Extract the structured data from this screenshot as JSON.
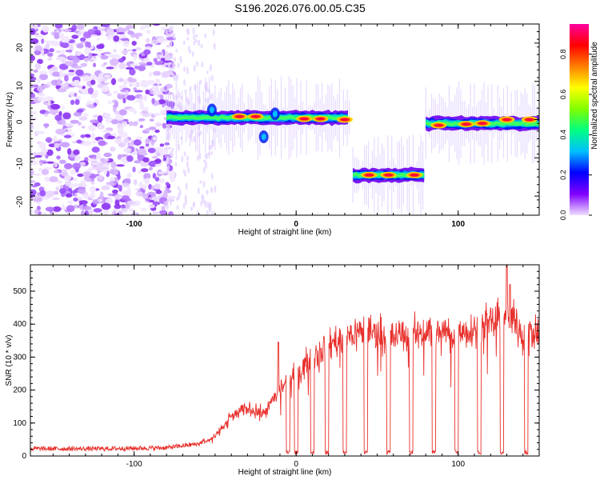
{
  "title": "S196.2026.076.00.05.C35",
  "chart_data": [
    {
      "type": "heatmap",
      "title": "S196.2026.076.00.05.C35",
      "xlabel": "Height of straight line (km)",
      "ylabel": "Frequency (Hz)",
      "xlim": [
        -164,
        150
      ],
      "ylim": [
        -25,
        25
      ],
      "xticks": [
        -100,
        0,
        100
      ],
      "yticks": [
        -20,
        -10,
        0,
        10,
        20
      ],
      "colorbar": {
        "label": "Normalized spectral amplitude",
        "range": [
          0,
          0.95
        ],
        "ticks": [
          0,
          0.2,
          0.4,
          0.6,
          0.8
        ],
        "tick_labels": [
          "0.0",
          "0.2",
          "0.4",
          "0.6",
          "0.8"
        ],
        "colormap": [
          "#f0e0ff",
          "#8000ff",
          "#0000ff",
          "#00c0ff",
          "#00ff80",
          "#80ff00",
          "#ffff00",
          "#ff8000",
          "#ff0000",
          "#ff00a0"
        ]
      },
      "noise_region_x": [
        -164,
        -80
      ],
      "segments": [
        {
          "x_start": -80,
          "x_end": 33,
          "frequency": 0.5
        },
        {
          "x_start": 35,
          "x_end": 79,
          "frequency": -14.5
        },
        {
          "x_start": 80,
          "x_end": 150,
          "frequency": -1.0
        }
      ],
      "peaks": [
        {
          "x": -35,
          "freq": 0.8
        },
        {
          "x": -25,
          "freq": 0.8
        },
        {
          "x": 5,
          "freq": 0.2
        },
        {
          "x": 15,
          "freq": 0.2
        },
        {
          "x": 30,
          "freq": 0
        },
        {
          "x": 45,
          "freq": -14.5
        },
        {
          "x": 57,
          "freq": -14.5
        },
        {
          "x": 73,
          "freq": -14.5
        },
        {
          "x": 88,
          "freq": -1.5
        },
        {
          "x": 105,
          "freq": -1.2
        },
        {
          "x": 115,
          "freq": -1.0
        },
        {
          "x": 130,
          "freq": 0
        },
        {
          "x": 144,
          "freq": 0
        }
      ]
    },
    {
      "type": "line",
      "xlabel": "Height of straight line (km)",
      "ylabel": "SNR (10 * v/v)",
      "xlim": [
        -164,
        150
      ],
      "ylim": [
        0,
        580
      ],
      "xticks": [
        -100,
        0,
        100
      ],
      "yticks": [
        0,
        100,
        200,
        300,
        400,
        500
      ],
      "color": "#e8302c",
      "trend": {
        "x": [
          -164,
          -120,
          -80,
          -60,
          -50,
          -40,
          -30,
          -20,
          -10,
          0,
          10,
          20,
          30,
          40,
          50,
          60,
          80,
          100,
          120,
          130,
          140,
          150
        ],
        "y": [
          15,
          15,
          18,
          30,
          60,
          120,
          145,
          130,
          200,
          250,
          300,
          340,
          360,
          380,
          375,
          360,
          380,
          375,
          400,
          430,
          380,
          370
        ]
      },
      "spikes": [
        {
          "x": -11,
          "y": 345
        },
        {
          "x": 130,
          "y": 580
        },
        {
          "x": 132,
          "y": 520
        }
      ],
      "dips": [
        -5,
        0,
        10,
        19,
        30,
        43,
        57,
        71,
        85,
        99,
        113,
        127,
        142
      ]
    }
  ]
}
